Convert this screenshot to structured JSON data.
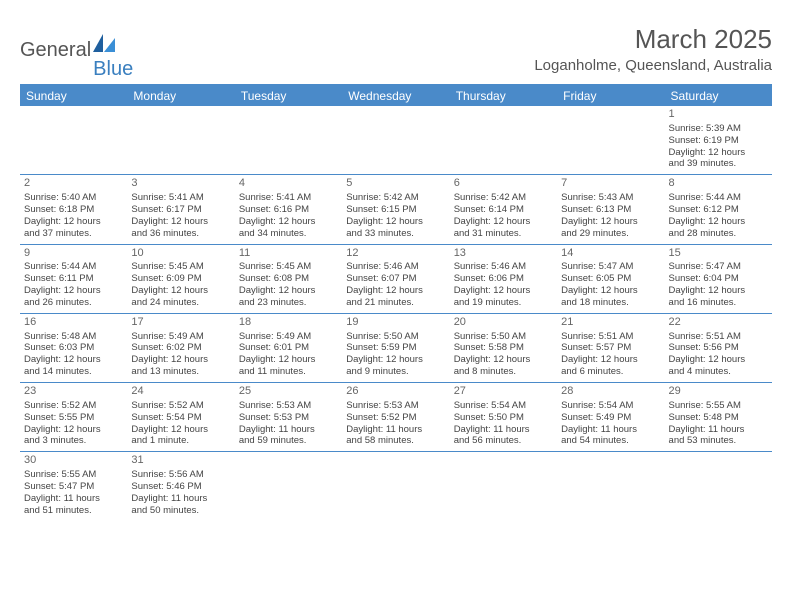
{
  "logo": {
    "text_general": "General",
    "text_blue": "Blue"
  },
  "title": "March 2025",
  "location": "Loganholme, Queensland, Australia",
  "colors": {
    "header_bg": "#4a8ac9",
    "header_text": "#ffffff",
    "body_text": "#444444",
    "title_text": "#555555",
    "rule": "#4a8ac9"
  },
  "weekdays": [
    "Sunday",
    "Monday",
    "Tuesday",
    "Wednesday",
    "Thursday",
    "Friday",
    "Saturday"
  ],
  "weeks": [
    [
      null,
      null,
      null,
      null,
      null,
      null,
      {
        "n": "1",
        "sunrise": "Sunrise: 5:39 AM",
        "sunset": "Sunset: 6:19 PM",
        "day1": "Daylight: 12 hours",
        "day2": "and 39 minutes."
      }
    ],
    [
      {
        "n": "2",
        "sunrise": "Sunrise: 5:40 AM",
        "sunset": "Sunset: 6:18 PM",
        "day1": "Daylight: 12 hours",
        "day2": "and 37 minutes."
      },
      {
        "n": "3",
        "sunrise": "Sunrise: 5:41 AM",
        "sunset": "Sunset: 6:17 PM",
        "day1": "Daylight: 12 hours",
        "day2": "and 36 minutes."
      },
      {
        "n": "4",
        "sunrise": "Sunrise: 5:41 AM",
        "sunset": "Sunset: 6:16 PM",
        "day1": "Daylight: 12 hours",
        "day2": "and 34 minutes."
      },
      {
        "n": "5",
        "sunrise": "Sunrise: 5:42 AM",
        "sunset": "Sunset: 6:15 PM",
        "day1": "Daylight: 12 hours",
        "day2": "and 33 minutes."
      },
      {
        "n": "6",
        "sunrise": "Sunrise: 5:42 AM",
        "sunset": "Sunset: 6:14 PM",
        "day1": "Daylight: 12 hours",
        "day2": "and 31 minutes."
      },
      {
        "n": "7",
        "sunrise": "Sunrise: 5:43 AM",
        "sunset": "Sunset: 6:13 PM",
        "day1": "Daylight: 12 hours",
        "day2": "and 29 minutes."
      },
      {
        "n": "8",
        "sunrise": "Sunrise: 5:44 AM",
        "sunset": "Sunset: 6:12 PM",
        "day1": "Daylight: 12 hours",
        "day2": "and 28 minutes."
      }
    ],
    [
      {
        "n": "9",
        "sunrise": "Sunrise: 5:44 AM",
        "sunset": "Sunset: 6:11 PM",
        "day1": "Daylight: 12 hours",
        "day2": "and 26 minutes."
      },
      {
        "n": "10",
        "sunrise": "Sunrise: 5:45 AM",
        "sunset": "Sunset: 6:09 PM",
        "day1": "Daylight: 12 hours",
        "day2": "and 24 minutes."
      },
      {
        "n": "11",
        "sunrise": "Sunrise: 5:45 AM",
        "sunset": "Sunset: 6:08 PM",
        "day1": "Daylight: 12 hours",
        "day2": "and 23 minutes."
      },
      {
        "n": "12",
        "sunrise": "Sunrise: 5:46 AM",
        "sunset": "Sunset: 6:07 PM",
        "day1": "Daylight: 12 hours",
        "day2": "and 21 minutes."
      },
      {
        "n": "13",
        "sunrise": "Sunrise: 5:46 AM",
        "sunset": "Sunset: 6:06 PM",
        "day1": "Daylight: 12 hours",
        "day2": "and 19 minutes."
      },
      {
        "n": "14",
        "sunrise": "Sunrise: 5:47 AM",
        "sunset": "Sunset: 6:05 PM",
        "day1": "Daylight: 12 hours",
        "day2": "and 18 minutes."
      },
      {
        "n": "15",
        "sunrise": "Sunrise: 5:47 AM",
        "sunset": "Sunset: 6:04 PM",
        "day1": "Daylight: 12 hours",
        "day2": "and 16 minutes."
      }
    ],
    [
      {
        "n": "16",
        "sunrise": "Sunrise: 5:48 AM",
        "sunset": "Sunset: 6:03 PM",
        "day1": "Daylight: 12 hours",
        "day2": "and 14 minutes."
      },
      {
        "n": "17",
        "sunrise": "Sunrise: 5:49 AM",
        "sunset": "Sunset: 6:02 PM",
        "day1": "Daylight: 12 hours",
        "day2": "and 13 minutes."
      },
      {
        "n": "18",
        "sunrise": "Sunrise: 5:49 AM",
        "sunset": "Sunset: 6:01 PM",
        "day1": "Daylight: 12 hours",
        "day2": "and 11 minutes."
      },
      {
        "n": "19",
        "sunrise": "Sunrise: 5:50 AM",
        "sunset": "Sunset: 5:59 PM",
        "day1": "Daylight: 12 hours",
        "day2": "and 9 minutes."
      },
      {
        "n": "20",
        "sunrise": "Sunrise: 5:50 AM",
        "sunset": "Sunset: 5:58 PM",
        "day1": "Daylight: 12 hours",
        "day2": "and 8 minutes."
      },
      {
        "n": "21",
        "sunrise": "Sunrise: 5:51 AM",
        "sunset": "Sunset: 5:57 PM",
        "day1": "Daylight: 12 hours",
        "day2": "and 6 minutes."
      },
      {
        "n": "22",
        "sunrise": "Sunrise: 5:51 AM",
        "sunset": "Sunset: 5:56 PM",
        "day1": "Daylight: 12 hours",
        "day2": "and 4 minutes."
      }
    ],
    [
      {
        "n": "23",
        "sunrise": "Sunrise: 5:52 AM",
        "sunset": "Sunset: 5:55 PM",
        "day1": "Daylight: 12 hours",
        "day2": "and 3 minutes."
      },
      {
        "n": "24",
        "sunrise": "Sunrise: 5:52 AM",
        "sunset": "Sunset: 5:54 PM",
        "day1": "Daylight: 12 hours",
        "day2": "and 1 minute."
      },
      {
        "n": "25",
        "sunrise": "Sunrise: 5:53 AM",
        "sunset": "Sunset: 5:53 PM",
        "day1": "Daylight: 11 hours",
        "day2": "and 59 minutes."
      },
      {
        "n": "26",
        "sunrise": "Sunrise: 5:53 AM",
        "sunset": "Sunset: 5:52 PM",
        "day1": "Daylight: 11 hours",
        "day2": "and 58 minutes."
      },
      {
        "n": "27",
        "sunrise": "Sunrise: 5:54 AM",
        "sunset": "Sunset: 5:50 PM",
        "day1": "Daylight: 11 hours",
        "day2": "and 56 minutes."
      },
      {
        "n": "28",
        "sunrise": "Sunrise: 5:54 AM",
        "sunset": "Sunset: 5:49 PM",
        "day1": "Daylight: 11 hours",
        "day2": "and 54 minutes."
      },
      {
        "n": "29",
        "sunrise": "Sunrise: 5:55 AM",
        "sunset": "Sunset: 5:48 PM",
        "day1": "Daylight: 11 hours",
        "day2": "and 53 minutes."
      }
    ],
    [
      {
        "n": "30",
        "sunrise": "Sunrise: 5:55 AM",
        "sunset": "Sunset: 5:47 PM",
        "day1": "Daylight: 11 hours",
        "day2": "and 51 minutes."
      },
      {
        "n": "31",
        "sunrise": "Sunrise: 5:56 AM",
        "sunset": "Sunset: 5:46 PM",
        "day1": "Daylight: 11 hours",
        "day2": "and 50 minutes."
      },
      null,
      null,
      null,
      null,
      null
    ]
  ]
}
